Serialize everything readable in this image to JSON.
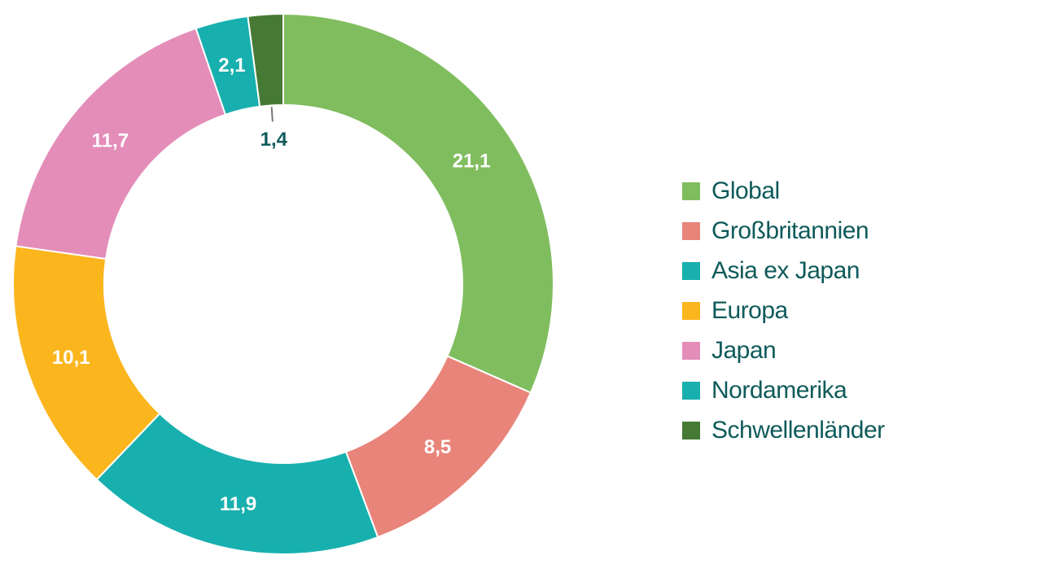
{
  "chart_data": {
    "type": "pie",
    "donut": true,
    "start_angle_deg": 0,
    "direction": "clockwise",
    "legend_position": "right",
    "slices": [
      {
        "name": "Global",
        "value": 21.1,
        "label": "21,1",
        "color": "#80bd5f"
      },
      {
        "name": "Großbritannien",
        "value": 8.5,
        "label": "8,5",
        "color": "#e8847a"
      },
      {
        "name": "Nordamerika",
        "value": 11.9,
        "label": "11,9",
        "color": "#18b0ae"
      },
      {
        "name": "Europa",
        "value": 10.1,
        "label": "10,1",
        "color": "#fbb61e"
      },
      {
        "name": "Japan",
        "value": 11.7,
        "label": "11,7",
        "color": "#e48db9"
      },
      {
        "name": "Asia ex Japan",
        "value": 2.1,
        "label": "2,1",
        "color": "#18b0ae"
      },
      {
        "name": "Schwellenländer",
        "value": 1.4,
        "label": "1,4",
        "color": "#467a34",
        "label_outside": true
      }
    ],
    "legend": [
      {
        "name": "Global",
        "color": "#80bd5f"
      },
      {
        "name": "Großbritannien",
        "color": "#e8847a"
      },
      {
        "name": "Asia ex Japan",
        "color": "#18b0ae"
      },
      {
        "name": "Europa",
        "color": "#fbb61e"
      },
      {
        "name": "Japan",
        "color": "#e48db9"
      },
      {
        "name": "Nordamerika",
        "color": "#18b0ae"
      },
      {
        "name": "Schwellenländer",
        "color": "#467a34"
      }
    ]
  }
}
